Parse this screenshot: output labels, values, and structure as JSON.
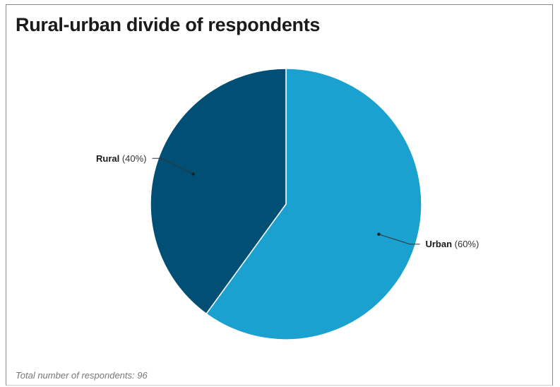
{
  "chart_data": {
    "type": "pie",
    "title": "Rural-urban divide of respondents",
    "slices": [
      {
        "label": "Urban",
        "value": 60,
        "percent_text": "(60%)",
        "color": "#1ba1cf"
      },
      {
        "label": "Rural",
        "value": 40,
        "percent_text": "(40%)",
        "color": "#024f75"
      }
    ],
    "start_angle_deg": 0,
    "direction": "clockwise",
    "legend": "none",
    "label_style": "callout"
  },
  "footnote": "Total number of respondents: 96"
}
